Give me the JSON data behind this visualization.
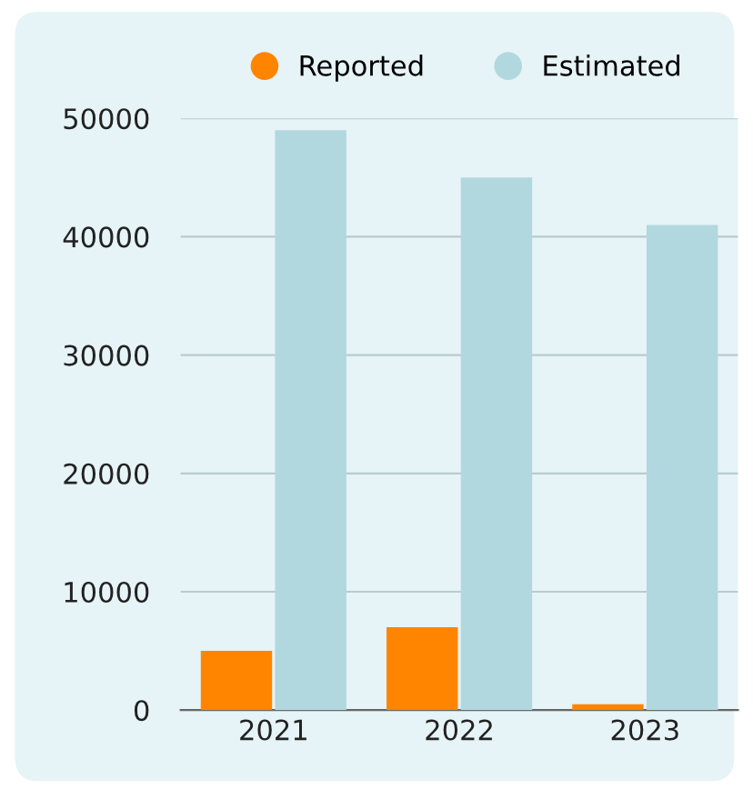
{
  "chart_data": {
    "type": "bar",
    "categories": [
      "2021",
      "2022",
      "2023"
    ],
    "series": [
      {
        "name": "Reported",
        "color": "#ff8500",
        "values": [
          5000,
          7000,
          500
        ]
      },
      {
        "name": "Estimated",
        "color": "#b2d8df",
        "values": [
          49000,
          45000,
          41000
        ]
      }
    ],
    "ylim": [
      0,
      50000
    ],
    "yticks": [
      0,
      10000,
      20000,
      30000,
      40000,
      50000
    ],
    "grid": "y",
    "legend": "top"
  }
}
